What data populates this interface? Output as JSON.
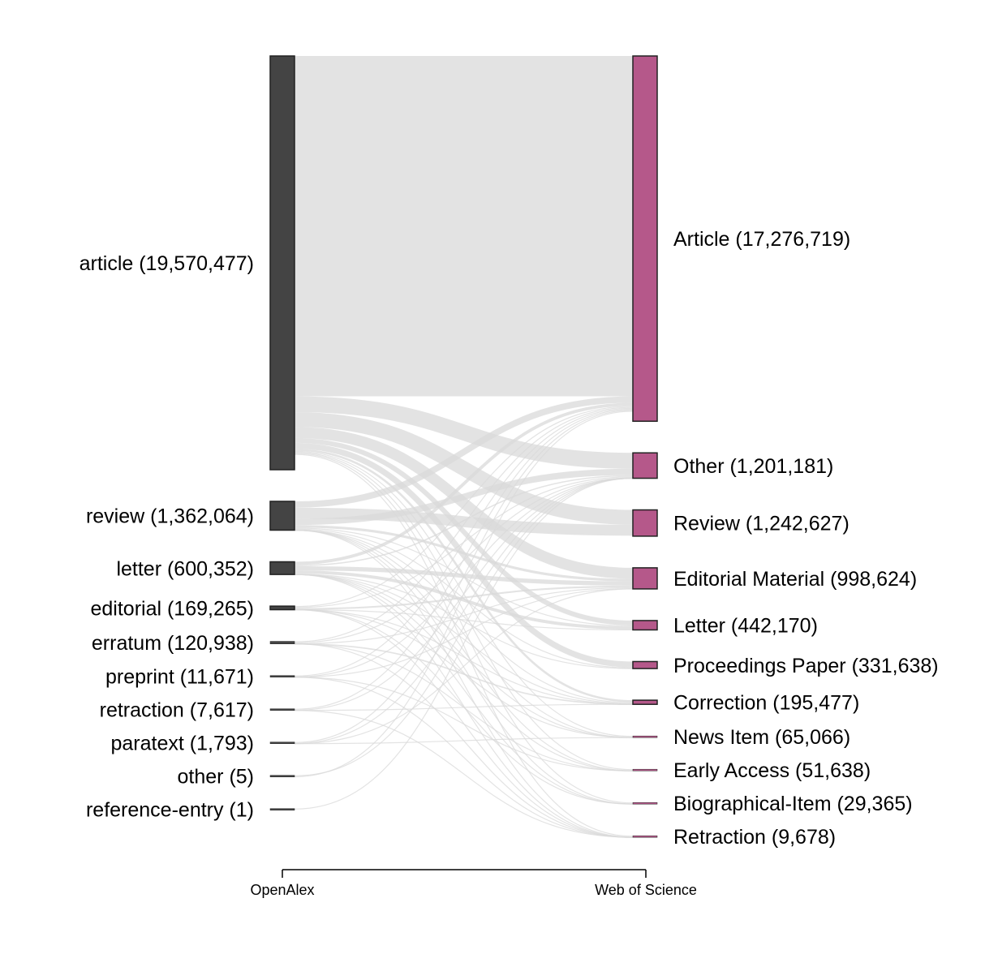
{
  "diagram": {
    "type": "sankey",
    "axis": {
      "left_label": "OpenAlex",
      "right_label": "Web of Science"
    },
    "colors": {
      "left_node": "#444444",
      "right_node": "#b5588a",
      "link": "#d9d9d9"
    },
    "left_nodes": [
      {
        "name": "article",
        "count": 19570477,
        "label": "article (19,570,477)"
      },
      {
        "name": "review",
        "count": 1362064,
        "label": "review (1,362,064)"
      },
      {
        "name": "letter",
        "count": 600352,
        "label": "letter (600,352)"
      },
      {
        "name": "editorial",
        "count": 169265,
        "label": "editorial (169,265)"
      },
      {
        "name": "erratum",
        "count": 120938,
        "label": "erratum (120,938)"
      },
      {
        "name": "preprint",
        "count": 11671,
        "label": "preprint (11,671)"
      },
      {
        "name": "retraction",
        "count": 7617,
        "label": "retraction (7,617)"
      },
      {
        "name": "paratext",
        "count": 1793,
        "label": "paratext (1,793)"
      },
      {
        "name": "other",
        "count": 5,
        "label": "other (5)"
      },
      {
        "name": "reference-entry",
        "count": 1,
        "label": "reference-entry (1)"
      }
    ],
    "right_nodes": [
      {
        "name": "Article",
        "count": 17276719,
        "label": "Article (17,276,719)"
      },
      {
        "name": "Other",
        "count": 1201181,
        "label": "Other (1,201,181)"
      },
      {
        "name": "Review",
        "count": 1242627,
        "label": "Review (1,242,627)"
      },
      {
        "name": "Editorial Material",
        "count": 998624,
        "label": "Editorial Material (998,624)"
      },
      {
        "name": "Letter",
        "count": 442170,
        "label": "Letter (442,170)"
      },
      {
        "name": "Proceedings Paper",
        "count": 331638,
        "label": "Proceedings Paper (331,638)"
      },
      {
        "name": "Correction",
        "count": 195477,
        "label": "Correction (195,477)"
      },
      {
        "name": "News Item",
        "count": 65066,
        "label": "News Item (65,066)"
      },
      {
        "name": "Early Access",
        "count": 51638,
        "label": "Early Access (51,638)"
      },
      {
        "name": "Biographical-Item",
        "count": 29365,
        "label": "Biographical-Item (29,365)"
      },
      {
        "name": "Retraction",
        "count": 9678,
        "label": "Retraction (9,678)"
      }
    ]
  }
}
